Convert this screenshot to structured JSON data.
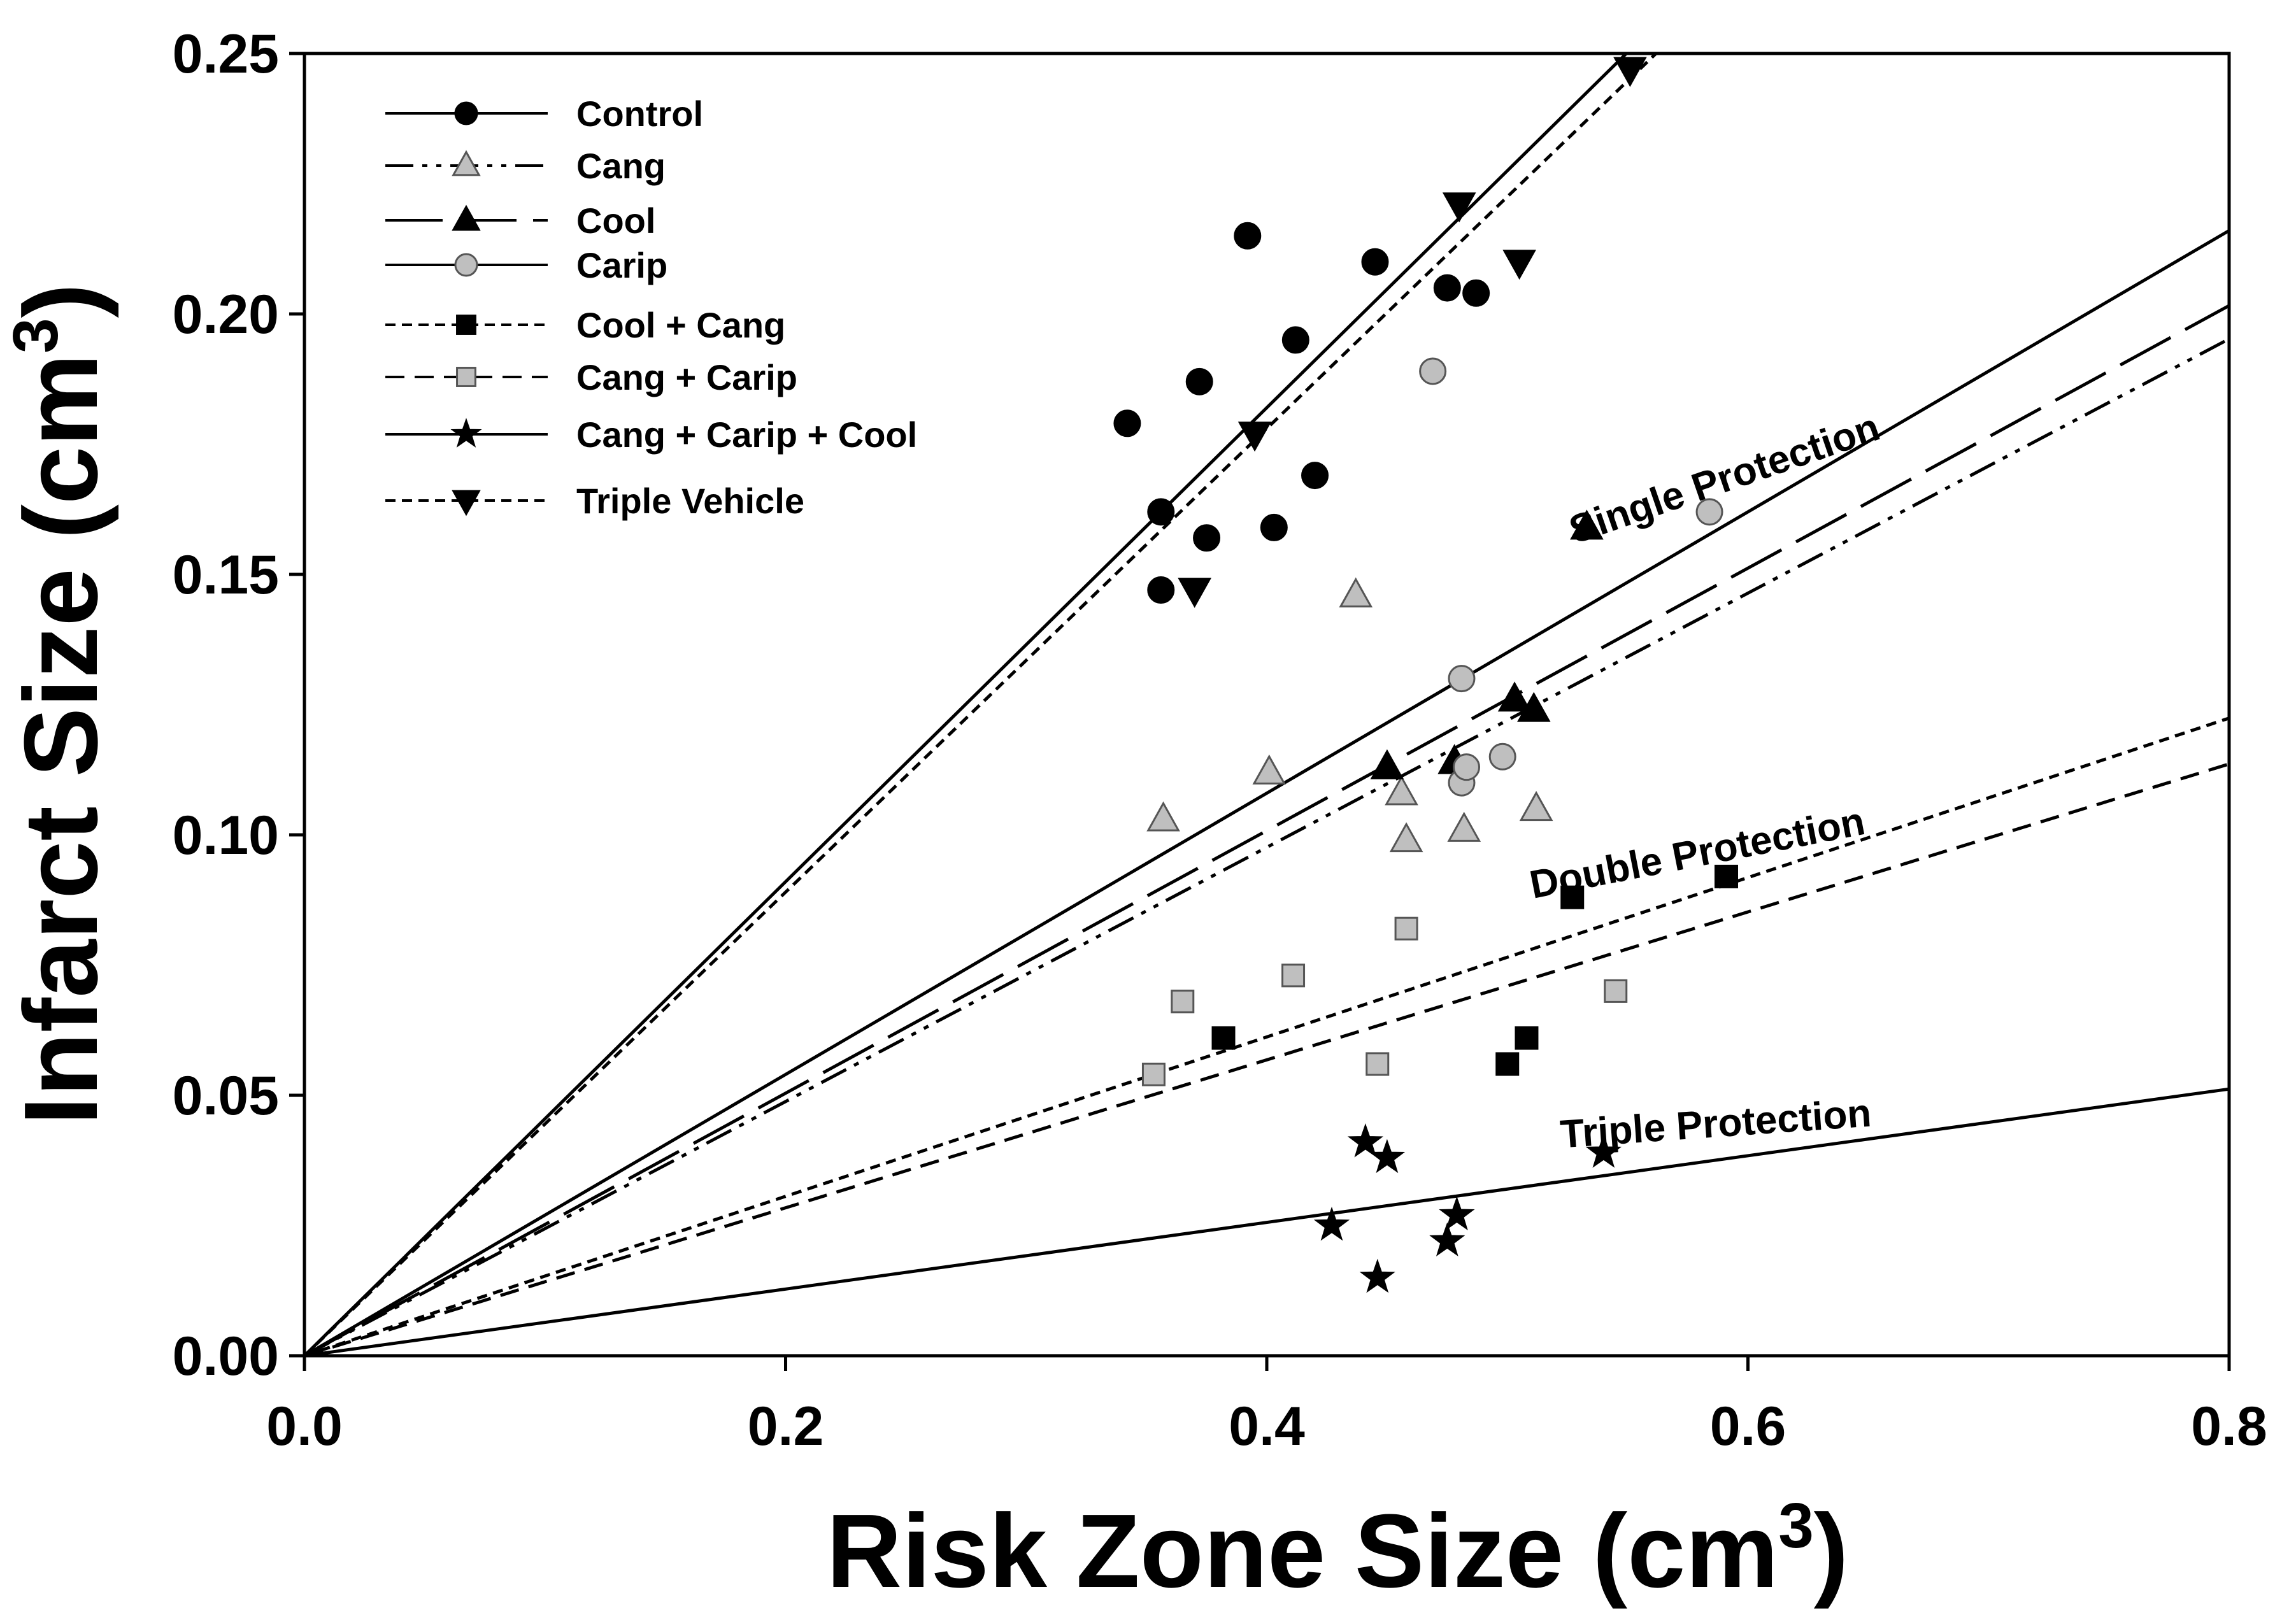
{
  "chart_data": {
    "type": "scatter",
    "xlabel": "Risk Zone Size (cm",
    "xlabel_sup": "3",
    "xlabel_close": ")",
    "ylabel": "Infarct Size (cm",
    "ylabel_sup": "3",
    "ylabel_close": ")",
    "xlim": [
      0,
      0.8
    ],
    "ylim": [
      0,
      0.25
    ],
    "x_ticks": [
      0.0,
      0.2,
      0.4,
      0.6,
      0.8
    ],
    "x_tick_labels": [
      "0.0",
      "0.2",
      "0.4",
      "0.6",
      "0.8"
    ],
    "y_ticks": [
      0.0,
      0.05,
      0.1,
      0.15,
      0.2,
      0.25
    ],
    "y_tick_labels": [
      "0.00",
      "0.05",
      "0.10",
      "0.15",
      "0.20",
      "0.25"
    ],
    "grid": false,
    "legend_position": "top-left",
    "series": [
      {
        "name": "Control",
        "marker": "circle",
        "fill": "#000000",
        "line": "solid",
        "slope": 0.455,
        "points": [
          [
            0.342,
            0.179
          ],
          [
            0.356,
            0.162
          ],
          [
            0.356,
            0.147
          ],
          [
            0.372,
            0.187
          ],
          [
            0.375,
            0.157
          ],
          [
            0.392,
            0.215
          ],
          [
            0.403,
            0.159
          ],
          [
            0.412,
            0.195
          ],
          [
            0.42,
            0.169
          ],
          [
            0.445,
            0.21
          ],
          [
            0.475,
            0.205
          ],
          [
            0.487,
            0.204
          ]
        ]
      },
      {
        "name": "Cang",
        "marker": "triangle-up",
        "fill": "#bfbfbf",
        "line": "dashdotdot",
        "slope": 0.244,
        "points": [
          [
            0.357,
            0.103
          ],
          [
            0.401,
            0.112
          ],
          [
            0.437,
            0.146
          ],
          [
            0.456,
            0.108
          ],
          [
            0.458,
            0.099
          ],
          [
            0.482,
            0.101
          ],
          [
            0.512,
            0.105
          ]
        ]
      },
      {
        "name": "Cool",
        "marker": "triangle-up",
        "fill": "#000000",
        "line": "longdash",
        "slope": 0.252,
        "points": [
          [
            0.45,
            0.113
          ],
          [
            0.478,
            0.114
          ],
          [
            0.503,
            0.126
          ],
          [
            0.511,
            0.124
          ],
          [
            0.533,
            0.159
          ]
        ]
      },
      {
        "name": "Carip",
        "marker": "circle",
        "fill": "#bfbfbf",
        "line": "solid",
        "slope": 0.27,
        "points": [
          [
            0.469,
            0.189
          ],
          [
            0.481,
            0.13
          ],
          [
            0.481,
            0.11
          ],
          [
            0.483,
            0.113
          ],
          [
            0.498,
            0.115
          ],
          [
            0.584,
            0.162
          ]
        ]
      },
      {
        "name": "Cool + Cang",
        "marker": "square",
        "fill": "#000000",
        "line": "shortdash",
        "slope": 0.153,
        "points": [
          [
            0.382,
            0.061
          ],
          [
            0.5,
            0.056
          ],
          [
            0.508,
            0.061
          ],
          [
            0.527,
            0.088
          ],
          [
            0.591,
            0.092
          ]
        ]
      },
      {
        "name": "Cang + Carip",
        "marker": "square",
        "fill": "#bfbfbf",
        "line": "dash",
        "slope": 0.142,
        "points": [
          [
            0.353,
            0.054
          ],
          [
            0.365,
            0.068
          ],
          [
            0.411,
            0.073
          ],
          [
            0.446,
            0.056
          ],
          [
            0.458,
            0.082
          ],
          [
            0.545,
            0.07
          ]
        ]
      },
      {
        "name": "Cang + Carip + Cool",
        "marker": "star",
        "fill": "#000000",
        "line": "solid",
        "slope": 0.064,
        "points": [
          [
            0.427,
            0.025
          ],
          [
            0.441,
            0.041
          ],
          [
            0.446,
            0.015
          ],
          [
            0.45,
            0.038
          ],
          [
            0.475,
            0.022
          ],
          [
            0.479,
            0.027
          ],
          [
            0.54,
            0.039
          ]
        ]
      },
      {
        "name": "Triple Vehicle",
        "marker": "triangle-down",
        "fill": "#000000",
        "line": "shortdash",
        "slope": 0.445,
        "points": [
          [
            0.37,
            0.147
          ],
          [
            0.395,
            0.177
          ],
          [
            0.48,
            0.221
          ],
          [
            0.505,
            0.21
          ],
          [
            0.551,
            0.247
          ]
        ]
      }
    ],
    "annotations": [
      {
        "text": "Single Protection",
        "x": 0.592,
        "y": 0.166,
        "angle_deg": -19
      },
      {
        "text": "Double Protection",
        "x": 0.58,
        "y": 0.094,
        "angle_deg": -11
      },
      {
        "text": "Triple Protection",
        "x": 0.587,
        "y": 0.042,
        "angle_deg": -4
      }
    ]
  }
}
